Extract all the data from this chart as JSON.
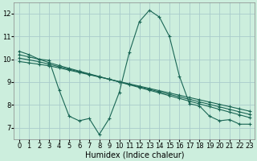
{
  "xlabel": "Humidex (Indice chaleur)",
  "bg_color": "#cceedd",
  "grid_color": "#aacccc",
  "line_color": "#1a6655",
  "xlim": [
    -0.5,
    23.5
  ],
  "ylim": [
    6.5,
    12.5
  ],
  "xticks": [
    0,
    1,
    2,
    3,
    4,
    5,
    6,
    7,
    8,
    9,
    10,
    11,
    12,
    13,
    14,
    15,
    16,
    17,
    18,
    19,
    20,
    21,
    22,
    23
  ],
  "yticks": [
    7,
    8,
    9,
    10,
    11,
    12
  ],
  "line1_y": [
    10.35,
    10.2,
    10.0,
    9.95,
    8.65,
    7.5,
    7.3,
    7.4,
    6.7,
    7.4,
    8.55,
    10.3,
    11.65,
    12.15,
    11.85,
    11.0,
    9.25,
    8.05,
    7.95,
    7.5,
    7.3,
    7.35,
    7.15,
    7.15
  ],
  "line2_y": [
    10.2,
    10.1,
    10.0,
    9.85,
    9.72,
    9.6,
    9.48,
    9.36,
    9.24,
    9.12,
    9.0,
    8.88,
    8.76,
    8.64,
    8.52,
    8.4,
    8.28,
    8.16,
    8.04,
    7.92,
    7.8,
    7.68,
    7.56,
    7.44
  ],
  "line3_y": [
    10.05,
    9.97,
    9.89,
    9.78,
    9.67,
    9.56,
    9.45,
    9.34,
    9.23,
    9.12,
    9.01,
    8.9,
    8.79,
    8.68,
    8.57,
    8.46,
    8.35,
    8.24,
    8.13,
    8.02,
    7.91,
    7.8,
    7.69,
    7.58
  ],
  "line4_y": [
    9.9,
    9.84,
    9.78,
    9.71,
    9.62,
    9.52,
    9.42,
    9.32,
    9.22,
    9.12,
    9.02,
    8.92,
    8.82,
    8.72,
    8.62,
    8.52,
    8.42,
    8.32,
    8.22,
    8.12,
    8.02,
    7.92,
    7.82,
    7.72
  ],
  "xlabel_fontsize": 7,
  "tick_fontsize": 6
}
